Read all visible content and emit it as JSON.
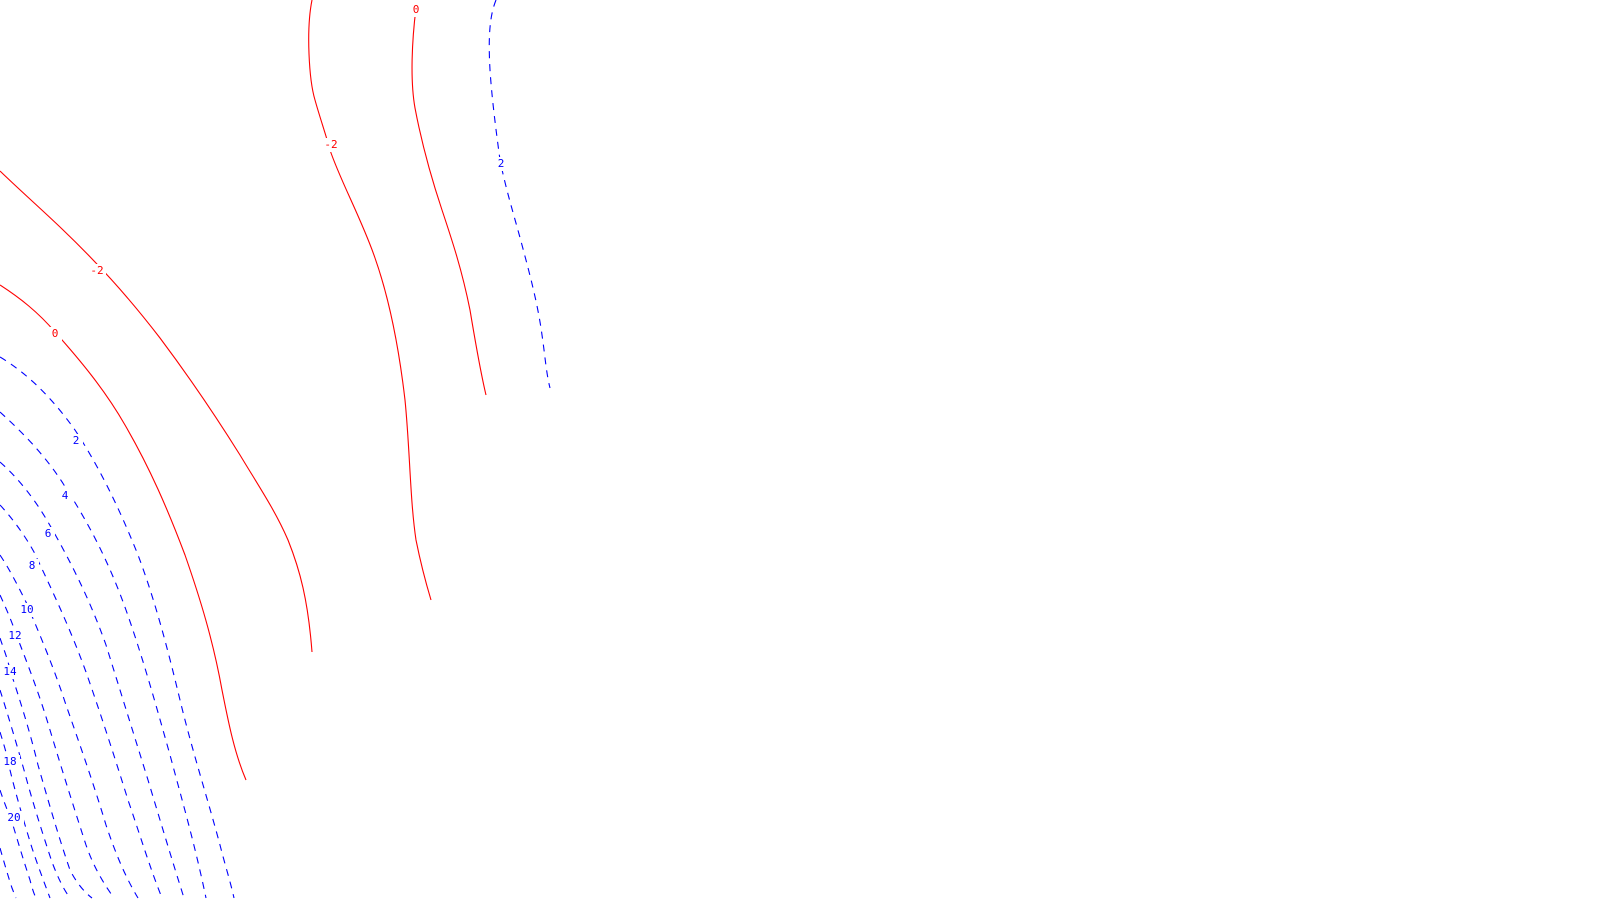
{
  "map": {
    "colors": {
      "background": "#ffffff",
      "negative_contour": "#ff0000",
      "positive_contour": "#0000ff"
    },
    "contour_styles": {
      "negative_and_zero": "solid red",
      "positive": "dashed blue"
    },
    "contour_labels": [
      {
        "id": "label-0-top",
        "text": "0"
      },
      {
        "id": "label-neg2-upper",
        "text": "-2"
      },
      {
        "id": "label-2-upper",
        "text": "2"
      },
      {
        "id": "label-neg2-left",
        "text": "-2"
      },
      {
        "id": "label-0-left",
        "text": "0"
      },
      {
        "id": "label-2-left",
        "text": "2"
      },
      {
        "id": "label-4",
        "text": "4"
      },
      {
        "id": "label-6",
        "text": "6"
      },
      {
        "id": "label-8",
        "text": "8"
      },
      {
        "id": "label-10",
        "text": "10"
      },
      {
        "id": "label-12",
        "text": "12"
      },
      {
        "id": "label-14",
        "text": "14"
      },
      {
        "id": "label-18",
        "text": "18"
      },
      {
        "id": "label-20",
        "text": "20"
      }
    ]
  }
}
